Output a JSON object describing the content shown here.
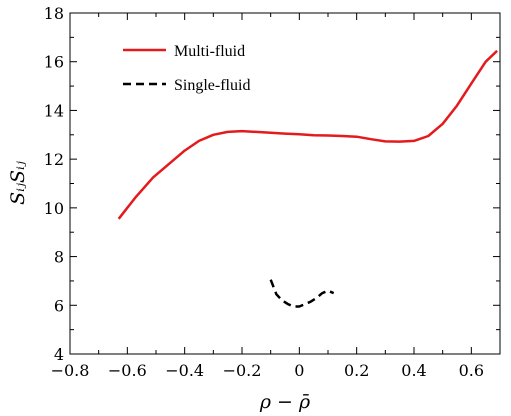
{
  "chart_data": {
    "type": "line",
    "title": "",
    "xlabel": "ρ − ρ̄",
    "ylabel": "SᵢⱼSᵢⱼ",
    "xlim": [
      -0.8,
      0.7
    ],
    "ylim": [
      4,
      18
    ],
    "xticks": [
      -0.8,
      -0.6,
      -0.4,
      -0.2,
      0,
      0.2,
      0.4,
      0.6
    ],
    "xtick_labels": [
      "−0.8",
      "−0.6",
      "−0.4",
      "−0.2",
      "0",
      "0.2",
      "0.4",
      "0.6"
    ],
    "yticks": [
      4,
      6,
      8,
      10,
      12,
      14,
      16,
      18
    ],
    "ytick_labels": [
      "4",
      "6",
      "8",
      "10",
      "12",
      "14",
      "16",
      "18"
    ],
    "grid": false,
    "legend": "top-left",
    "series": [
      {
        "name": "Multi-fluid",
        "color": "#e41a1c",
        "style": "solid",
        "x": [
          -0.63,
          -0.57,
          -0.51,
          -0.45,
          -0.4,
          -0.35,
          -0.3,
          -0.25,
          -0.2,
          -0.15,
          -0.1,
          -0.05,
          0.0,
          0.05,
          0.1,
          0.15,
          0.2,
          0.25,
          0.3,
          0.35,
          0.4,
          0.45,
          0.5,
          0.55,
          0.6,
          0.65,
          0.69
        ],
        "y": [
          9.55,
          10.45,
          11.25,
          11.85,
          12.35,
          12.75,
          13.0,
          13.12,
          13.15,
          13.12,
          13.08,
          13.05,
          13.02,
          12.98,
          12.97,
          12.95,
          12.92,
          12.82,
          12.73,
          12.72,
          12.75,
          12.95,
          13.45,
          14.2,
          15.1,
          16.0,
          16.45
        ]
      },
      {
        "name": "Single-fluid",
        "color": "#000000",
        "style": "dashed",
        "x": [
          -0.1,
          -0.08,
          -0.06,
          -0.04,
          -0.02,
          0.0,
          0.02,
          0.04,
          0.06,
          0.08,
          0.1,
          0.12
        ],
        "y": [
          7.05,
          6.45,
          6.2,
          6.05,
          5.95,
          5.95,
          6.05,
          6.15,
          6.3,
          6.5,
          6.6,
          6.5
        ]
      }
    ]
  }
}
